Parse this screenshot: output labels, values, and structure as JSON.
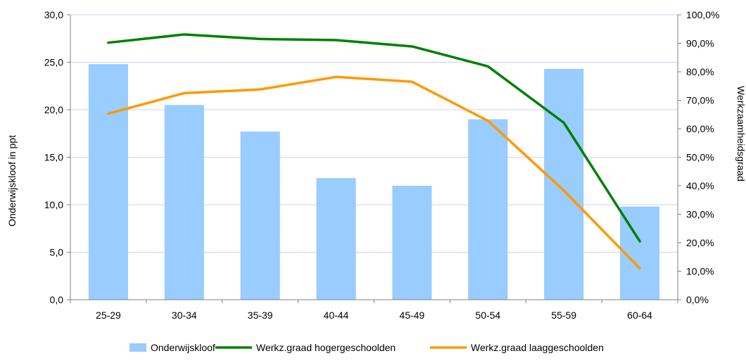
{
  "chart_data": {
    "type": "bar+line",
    "categories": [
      "25-29",
      "30-34",
      "35-39",
      "40-44",
      "45-49",
      "50-54",
      "55-59",
      "60-64"
    ],
    "bar_series": {
      "name": "Onderwijskloof",
      "values": [
        24.8,
        20.5,
        17.7,
        12.8,
        12.0,
        19.0,
        24.3,
        9.8
      ],
      "color": "#99ccff"
    },
    "line_series": [
      {
        "name": "Werkz.graad hogergeschoolden",
        "values": [
          90.2,
          93.1,
          91.5,
          91.1,
          88.9,
          81.9,
          62.1,
          20.5
        ],
        "color": "#008000"
      },
      {
        "name": "Werkz.graad laaggeschoolden",
        "values": [
          65.3,
          72.5,
          73.8,
          78.2,
          76.5,
          62.8,
          38.3,
          11.0
        ],
        "color": "#ff9900"
      }
    ],
    "ylabel_left": "Onderwijskloof in ppt",
    "ylabel_right": "Werkzaamheidsgraad",
    "ylim_left": [
      0,
      30
    ],
    "ylim_right": [
      0,
      100
    ],
    "yticks_left": [
      "0,0",
      "5,0",
      "10,0",
      "15,0",
      "20,0",
      "25,0",
      "30,0"
    ],
    "yticks_right": [
      "0,0%",
      "10,0%",
      "20,0%",
      "30,0%",
      "40,0%",
      "50,0%",
      "60,0%",
      "70,0%",
      "80,0%",
      "90,0%",
      "100,0%"
    ],
    "grid": true,
    "gridline_color": "#d0d0f0",
    "legend_position": "bottom"
  }
}
